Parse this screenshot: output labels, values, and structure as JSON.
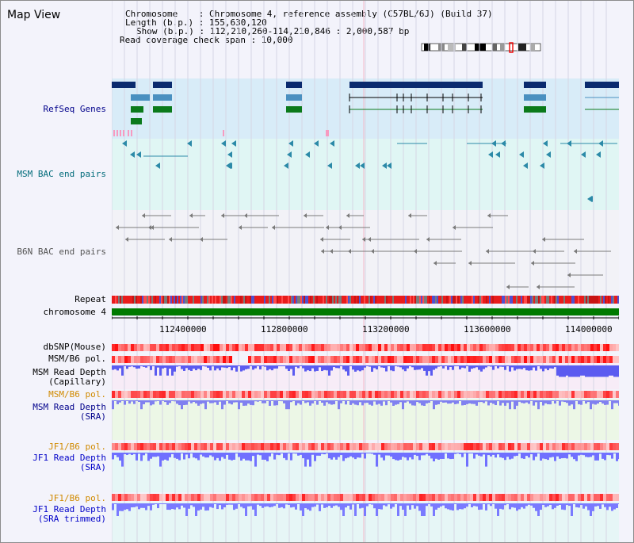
{
  "view": {
    "title": "Map View",
    "info_lines": [
      "Chromosome    : Chromosome 4, reference assembly (C57BL/6J) (Build 37)",
      "Length (b.p.) : 155,630,120",
      "Show (b.p.) : 112,210,260-114,210,846 : 2,000,587 bp",
      "Read coverage check span : 10,000"
    ]
  },
  "tracks": {
    "refseq": "RefSeq Genes",
    "msm_bac": "MSM BAC end pairs",
    "b6n_bac": "B6N BAC end pairs",
    "repeat": "Repeat",
    "chromosome": "chromosome 4",
    "dbsnp": "dbSNP(Mouse)",
    "msm_b6_pol_1": "MSM/B6 pol.",
    "msm_read_depth_cap": "MSM Read Depth\n(Capillary)",
    "msm_b6_pol_2": "MSM/B6 pol.",
    "msm_read_depth_sra": "MSM Read Depth\n(SRA)",
    "jf1_b6_pol_1": "JF1/B6 pol.",
    "jf1_read_depth_sra": "JF1 Read Depth\n(SRA)",
    "jf1_b6_pol_2": "JF1/B6 pol.",
    "jf1_read_depth_trim": "JF1 Read Depth\n(SRA trimmed)"
  },
  "axis": {
    "ticks": [
      "112400000",
      "112800000",
      "113200000",
      "113600000",
      "114000000"
    ],
    "tick_values": [
      112400000,
      112800000,
      113200000,
      113600000,
      114000000
    ],
    "range": [
      112210260,
      114210846
    ]
  },
  "colors": {
    "refseq_dark": "#0a2a6e",
    "refseq_mid": "#4a90c0",
    "refseq_green": "#0b7a1b",
    "msm_bac": "#2c8aa8",
    "b6n_bac": "#7a7a7a",
    "chrom_bar": "#007a00",
    "snp_red": "#e81c1c",
    "depth_blue": "#5b5bff"
  }
}
